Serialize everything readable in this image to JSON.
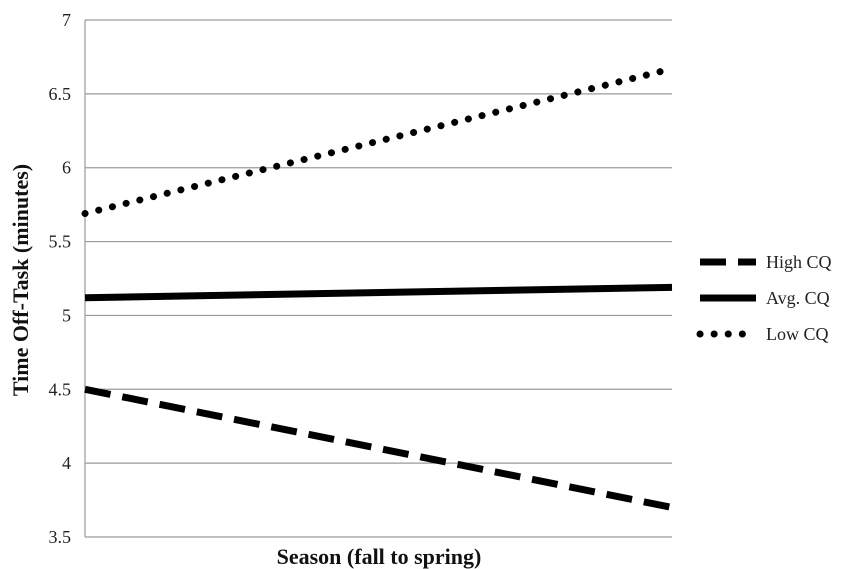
{
  "chart_data": {
    "type": "line",
    "title": "",
    "xlabel": "Season (fall to spring)",
    "ylabel": "Time Off-Task (minutes)",
    "ylim": [
      3.5,
      7
    ],
    "yticks": [
      "3.5",
      "4",
      "4.5",
      "5",
      "5.5",
      "6",
      "6.5",
      "7"
    ],
    "grid": true,
    "legend_position": "right",
    "x": [
      "fall",
      "spring"
    ],
    "series": [
      {
        "name": "High CQ",
        "values": [
          4.5,
          3.7
        ],
        "style": "dashed",
        "color": "#000000"
      },
      {
        "name": "Avg. CQ",
        "values": [
          5.12,
          5.19
        ],
        "style": "solid",
        "color": "#000000"
      },
      {
        "name": "Low CQ",
        "values": [
          5.69,
          6.67
        ],
        "style": "dotted",
        "color": "#000000"
      }
    ]
  }
}
